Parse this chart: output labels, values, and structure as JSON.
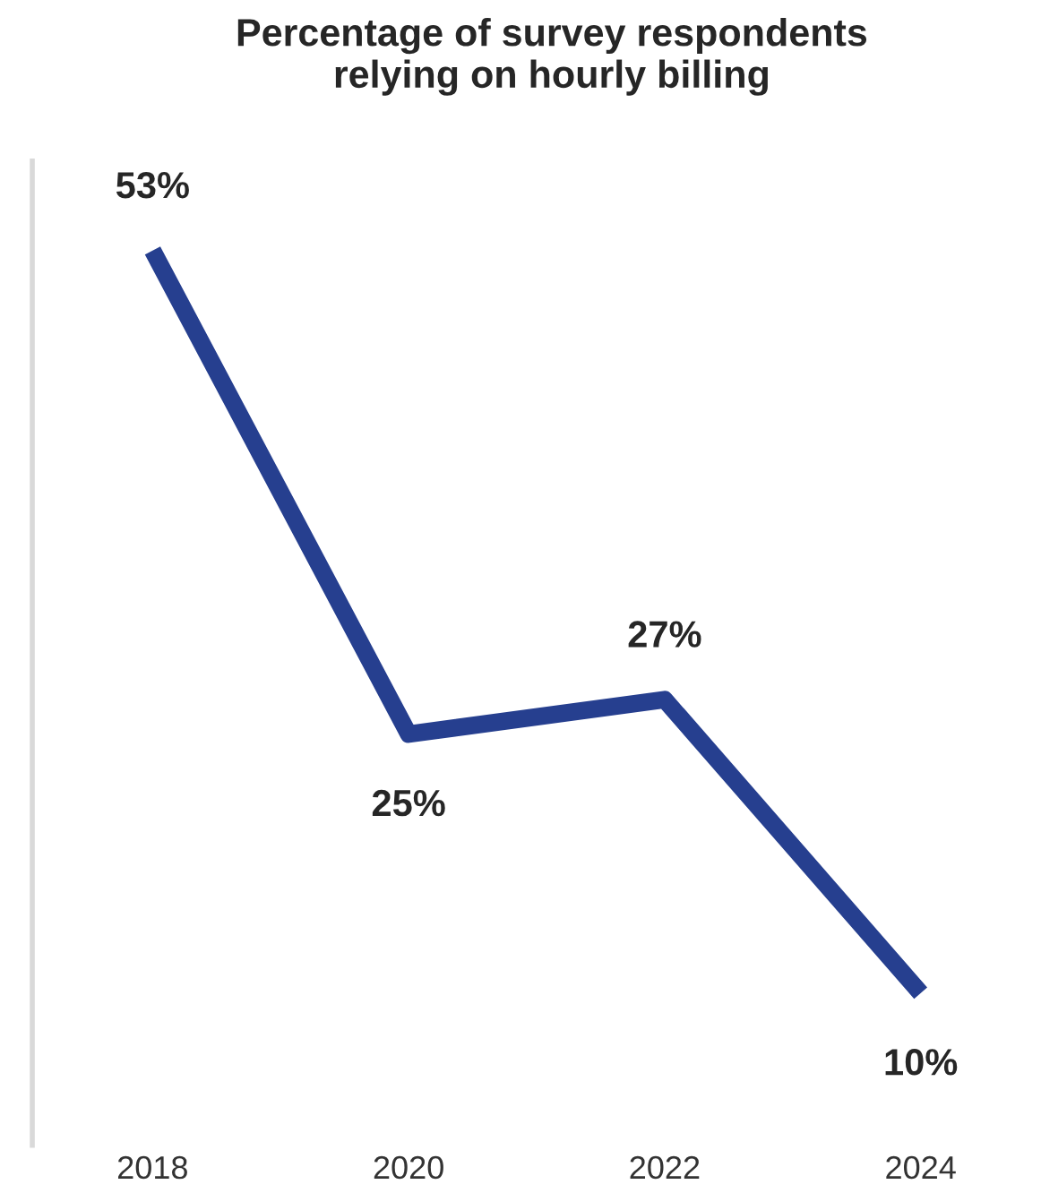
{
  "chart_data": {
    "type": "line",
    "title": "Percentage of survey respondents\nrelying on hourly billing",
    "categories": [
      "2018",
      "2020",
      "2022",
      "2024"
    ],
    "series": [
      {
        "color": "#263f8f",
        "values": [
          53,
          25,
          27,
          10
        ],
        "value_labels": [
          "53%",
          "25%",
          "27%",
          "10%"
        ]
      }
    ],
    "line_style": "solid"
  }
}
